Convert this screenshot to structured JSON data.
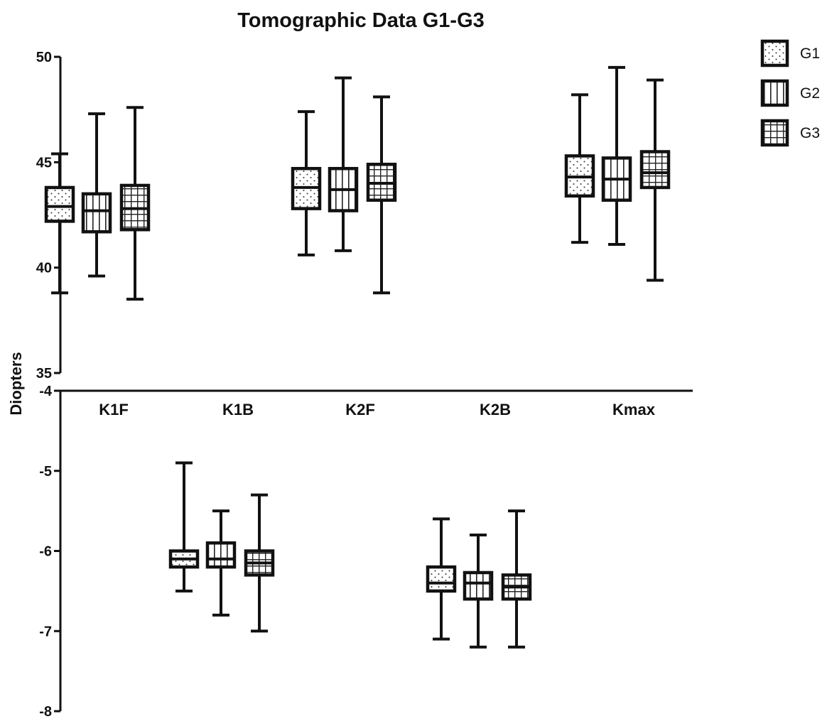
{
  "chart_data": {
    "type": "box",
    "title": "Tomographic Data G1-G3",
    "ylabel": "Diopters",
    "categories": [
      "K1F",
      "K1B",
      "K2F",
      "K2B",
      "Kmax"
    ],
    "legend": {
      "position": "top-right",
      "entries": [
        "G1",
        "G2",
        "G3"
      ]
    },
    "grid": false,
    "upper_panel": {
      "ylim": [
        35,
        50
      ],
      "yticks": [
        "50",
        "45",
        "40",
        "35"
      ],
      "boxes": [
        {
          "category": "K1F",
          "group": "G1",
          "min": 38.8,
          "q1": 42.2,
          "median": 42.9,
          "q3": 43.8,
          "max": 45.4
        },
        {
          "category": "K1F",
          "group": "G2",
          "min": 39.6,
          "q1": 41.7,
          "median": 42.7,
          "q3": 43.5,
          "max": 47.3
        },
        {
          "category": "K1F",
          "group": "G3",
          "min": 38.5,
          "q1": 41.8,
          "median": 42.8,
          "q3": 43.9,
          "max": 47.6
        },
        {
          "category": "K2F",
          "group": "G1",
          "min": 40.6,
          "q1": 42.8,
          "median": 43.8,
          "q3": 44.7,
          "max": 47.4
        },
        {
          "category": "K2F",
          "group": "G2",
          "min": 40.8,
          "q1": 42.7,
          "median": 43.7,
          "q3": 44.7,
          "max": 49.0
        },
        {
          "category": "K2F",
          "group": "G3",
          "min": 38.8,
          "q1": 43.2,
          "median": 44.0,
          "q3": 44.9,
          "max": 48.1
        },
        {
          "category": "Kmax",
          "group": "G1",
          "min": 41.2,
          "q1": 43.4,
          "median": 44.3,
          "q3": 45.3,
          "max": 48.2
        },
        {
          "category": "Kmax",
          "group": "G2",
          "min": 41.1,
          "q1": 43.2,
          "median": 44.2,
          "q3": 45.2,
          "max": 49.5
        },
        {
          "category": "Kmax",
          "group": "G3",
          "min": 39.4,
          "q1": 43.8,
          "median": 44.5,
          "q3": 45.5,
          "max": 48.9
        }
      ]
    },
    "lower_panel": {
      "ylim": [
        -8,
        -4
      ],
      "yticks": [
        "-4",
        "-5",
        "-6",
        "-7",
        "-8"
      ],
      "boxes": [
        {
          "category": "K1B",
          "group": "G1",
          "min": -6.5,
          "q1": -6.2,
          "median": -6.1,
          "q3": -6.0,
          "max": -4.9
        },
        {
          "category": "K1B",
          "group": "G2",
          "min": -6.8,
          "q1": -6.2,
          "median": -6.1,
          "q3": -5.9,
          "max": -5.5
        },
        {
          "category": "K1B",
          "group": "G3",
          "min": -7.0,
          "q1": -6.3,
          "median": -6.15,
          "q3": -6.0,
          "max": -5.3
        },
        {
          "category": "K2B",
          "group": "G1",
          "min": -7.1,
          "q1": -6.5,
          "median": -6.4,
          "q3": -6.2,
          "max": -5.6
        },
        {
          "category": "K2B",
          "group": "G2",
          "min": -7.2,
          "q1": -6.6,
          "median": -6.4,
          "q3": -6.27,
          "max": -5.8
        },
        {
          "category": "K2B",
          "group": "G3",
          "min": -7.2,
          "q1": -6.6,
          "median": -6.45,
          "q3": -6.3,
          "max": -5.5
        }
      ]
    },
    "patterns": {
      "G1": "dots",
      "G2": "vertical-lines",
      "G3": "grid"
    },
    "colors": {
      "ink": "#111111",
      "background": "#ffffff"
    }
  }
}
